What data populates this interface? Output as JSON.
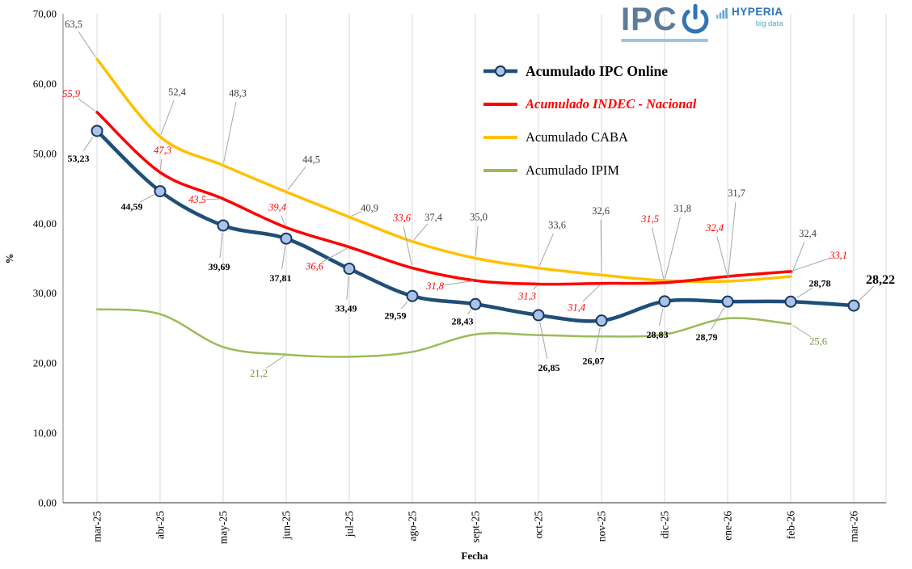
{
  "logos": {
    "ipc": {
      "text": "IPC"
    },
    "hyperia": {
      "text": "HYPERIA",
      "subtext": "big data"
    }
  },
  "chart_data": {
    "type": "line",
    "xlabel": "Fecha",
    "ylabel": "%",
    "ylim": [
      0,
      70
    ],
    "y_tick_labels": [
      "0,00",
      "10,00",
      "20,00",
      "30,00",
      "40,00",
      "50,00",
      "60,00",
      "70,00"
    ],
    "grid": "vertical",
    "legend_position": "top-center",
    "categories": [
      "mar-25",
      "abr-25",
      "may-25",
      "jun-25",
      "jul-25",
      "ago-25",
      "sept-25",
      "oct-25",
      "nov-25",
      "dic-25",
      "ene-26",
      "feb-26",
      "mar-26"
    ],
    "series": [
      {
        "name": "Acumulado IPC Online",
        "color": "#1F4E79",
        "marker_fill": "#A9C4E8",
        "marker_stroke": "#17375E",
        "label_color": "#000000",
        "label_bold": true,
        "values": [
          53.23,
          44.59,
          39.69,
          37.81,
          33.49,
          29.59,
          28.43,
          26.85,
          26.07,
          28.83,
          28.79,
          28.78,
          28.22
        ],
        "labels": [
          "53,23",
          "44,59",
          "39,69",
          "37,81",
          "33,49",
          "29,59",
          "28,43",
          "26,85",
          "26,07",
          "28,83",
          "28,79",
          "28,78",
          "28,22"
        ]
      },
      {
        "name": "Acumulado INDEC - Nacional",
        "color": "#FF0000",
        "label_color": "#FF0000",
        "label_italic": true,
        "values": [
          55.9,
          47.3,
          43.5,
          39.4,
          36.6,
          33.6,
          31.8,
          31.3,
          31.4,
          31.5,
          32.4,
          33.1
        ],
        "labels": [
          "55,9",
          "47,3",
          "43,5",
          "39,4",
          "36,6",
          "33,6",
          "31,8",
          "31,3",
          "31,4",
          "31,5",
          "32,4",
          "33,1"
        ]
      },
      {
        "name": "Acumulado CABA",
        "color": "#FFC000",
        "label_color": "#404040",
        "values": [
          63.5,
          52.4,
          48.3,
          44.5,
          40.9,
          37.4,
          35.0,
          33.6,
          32.6,
          31.8,
          31.7,
          32.4
        ],
        "labels": [
          "63,5",
          "52,4",
          "48,3",
          "44,5",
          "40,9",
          "37,4",
          "35,0",
          "33,6",
          "32,6",
          "31,8",
          "31,7",
          "32,4"
        ]
      },
      {
        "name": "Acumulado IPIM",
        "color": "#9BBB59",
        "label_color": "#76933C",
        "values": [
          27.7,
          27.0,
          22.3,
          21.2,
          20.9,
          21.6,
          24.1,
          24.0,
          23.8,
          24.1,
          26.4,
          25.6
        ],
        "labels": [
          null,
          null,
          null,
          "21,2",
          null,
          null,
          null,
          null,
          null,
          null,
          null,
          "25,6"
        ]
      }
    ]
  }
}
